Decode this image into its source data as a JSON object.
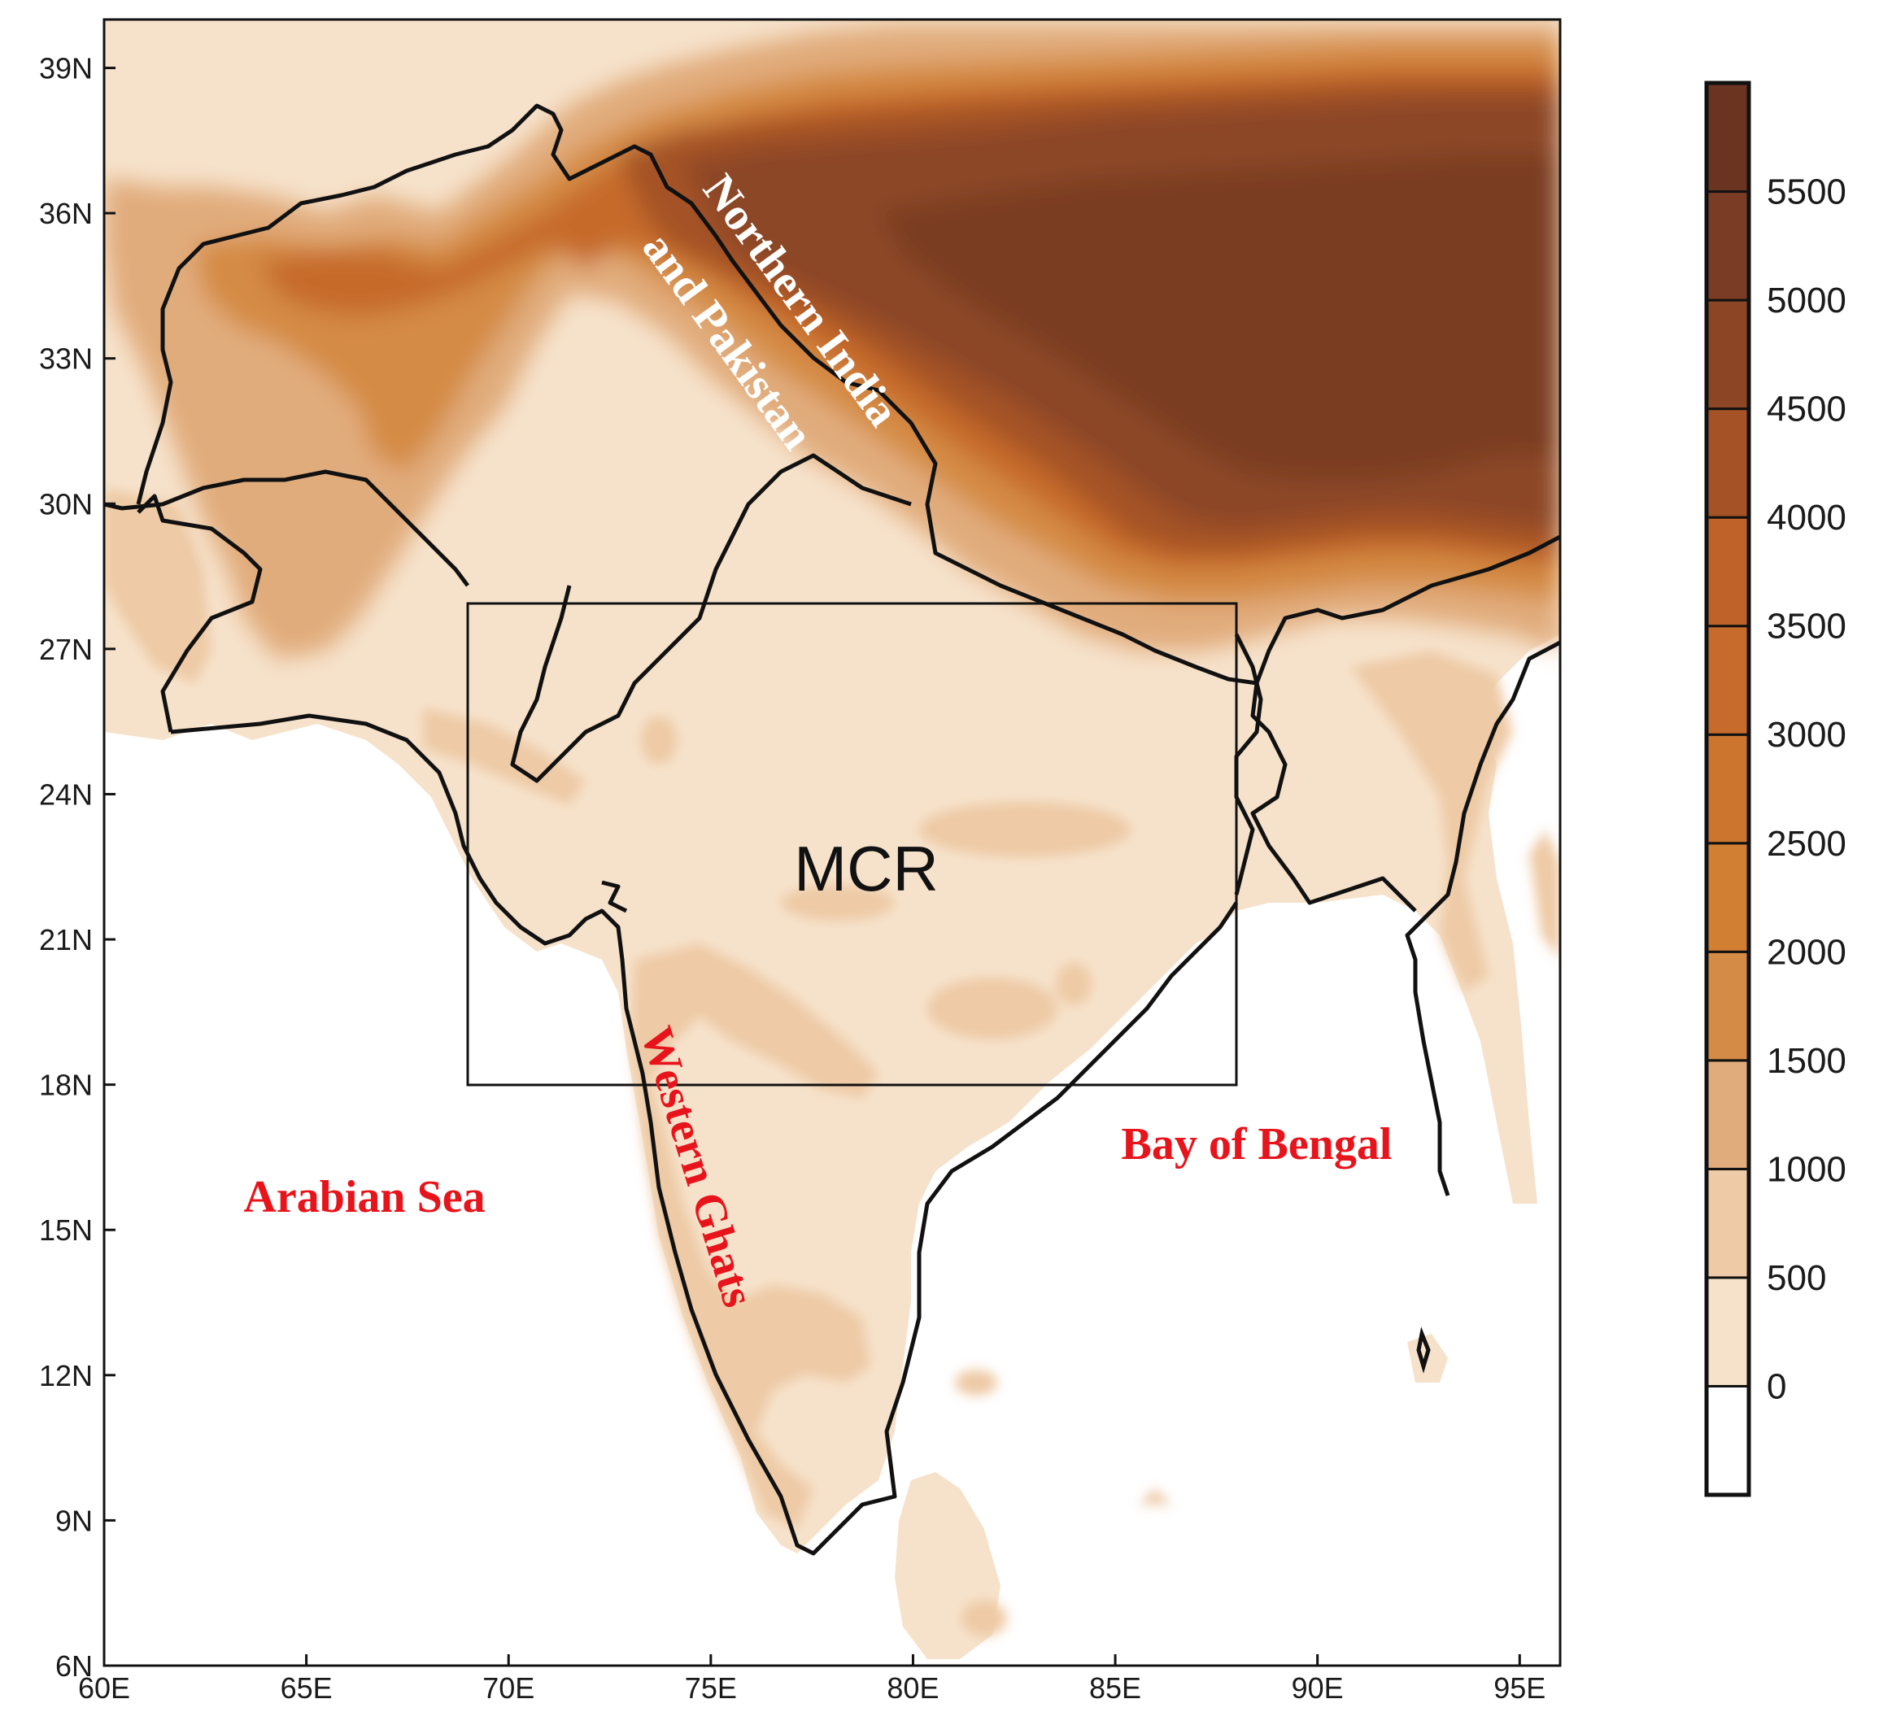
{
  "map": {
    "extent": {
      "lon_min": 60,
      "lon_max": 96,
      "lat_min": 6,
      "lat_max": 40
    },
    "x_ticks": [
      "60E",
      "65E",
      "70E",
      "75E",
      "80E",
      "85E",
      "90E",
      "95E"
    ],
    "y_ticks": [
      "6N",
      "9N",
      "12N",
      "15N",
      "18N",
      "21N",
      "24N",
      "27N",
      "30N",
      "33N",
      "36N",
      "39N"
    ],
    "box": {
      "label": "MCR",
      "lon_min": 69,
      "lon_max": 88,
      "lat_min": 18,
      "lat_max": 28
    },
    "labels": {
      "arabian_sea": "Arabian Sea",
      "bay_of_bengal": "Bay of Bengal",
      "western_ghats": "Western Ghats",
      "northern_line1": "Northern India",
      "northern_line2": "and Pakistan"
    },
    "label_colors": {
      "red": "#e8141b",
      "white": "#ffffff",
      "box": "#111111"
    }
  },
  "colorbar": {
    "levels": [
      "0",
      "500",
      "1000",
      "1500",
      "2000",
      "2500",
      "3000",
      "3500",
      "4000",
      "4500",
      "5000",
      "5500"
    ],
    "colors": [
      "#ffffff",
      "#f6e2cb",
      "#eecaa6",
      "#e1ac7c",
      "#d48b45",
      "#d07f33",
      "#cb752f",
      "#c66b2b",
      "#bf6229",
      "#a55226",
      "#8c4625",
      "#7a3c24",
      "#6a3420"
    ]
  }
}
